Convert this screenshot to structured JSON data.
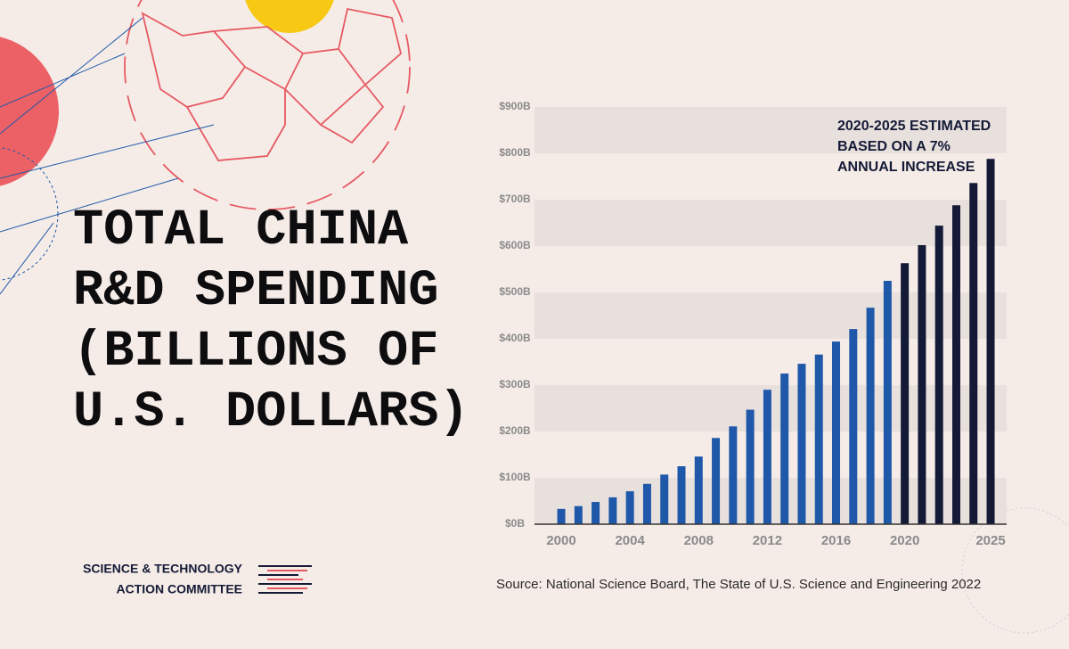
{
  "chart_data": {
    "type": "bar",
    "title": [
      "TOTAL CHINA",
      "R&D SPENDING",
      "(BILLIONS OF",
      "U.S. DOLLARS)"
    ],
    "annotation": [
      "2020-2025 ESTIMATED",
      "BASED ON A 7%",
      "ANNUAL INCREASE"
    ],
    "source": "Source: National Science Board, The State of U.S. Science and Engineering 2022",
    "categories": [
      "2000",
      null,
      null,
      null,
      "2004",
      null,
      null,
      null,
      "2008",
      null,
      null,
      null,
      "2012",
      null,
      null,
      null,
      "2016",
      null,
      null,
      null,
      "2020",
      null,
      null,
      null,
      null,
      "2025"
    ],
    "values": [
      33,
      39,
      48,
      58,
      71,
      87,
      107,
      125,
      146,
      186,
      211,
      247,
      290,
      325,
      346,
      366,
      394,
      421,
      467,
      525,
      563,
      602,
      644,
      688,
      736,
      788
    ],
    "colors": [
      "#1f58a8",
      "#1f58a8",
      "#1f58a8",
      "#1f58a8",
      "#1f58a8",
      "#1f58a8",
      "#1f58a8",
      "#1f58a8",
      "#1f58a8",
      "#1f58a8",
      "#1f58a8",
      "#1f58a8",
      "#1f58a8",
      "#1f58a8",
      "#1f58a8",
      "#1f58a8",
      "#1f58a8",
      "#1f58a8",
      "#1f58a8",
      "#1f58a8",
      "#141a36",
      "#141a36",
      "#141a36",
      "#141a36",
      "#141a36",
      "#141a36"
    ],
    "ylim": [
      0,
      900
    ],
    "yticks": [
      {
        "value": 0,
        "label": "$0B"
      },
      {
        "value": 100,
        "label": "$100B"
      },
      {
        "value": 200,
        "label": "$200B"
      },
      {
        "value": 300,
        "label": "$300B"
      },
      {
        "value": 400,
        "label": "$400B"
      },
      {
        "value": 500,
        "label": "$500B"
      },
      {
        "value": 600,
        "label": "$600B"
      },
      {
        "value": 700,
        "label": "$700B"
      },
      {
        "value": 800,
        "label": "$800B"
      },
      {
        "value": 900,
        "label": "$900B"
      }
    ],
    "grid": true
  },
  "logo": [
    "SCIENCE & TECHNOLOGY",
    "ACTION COMMITTEE"
  ]
}
